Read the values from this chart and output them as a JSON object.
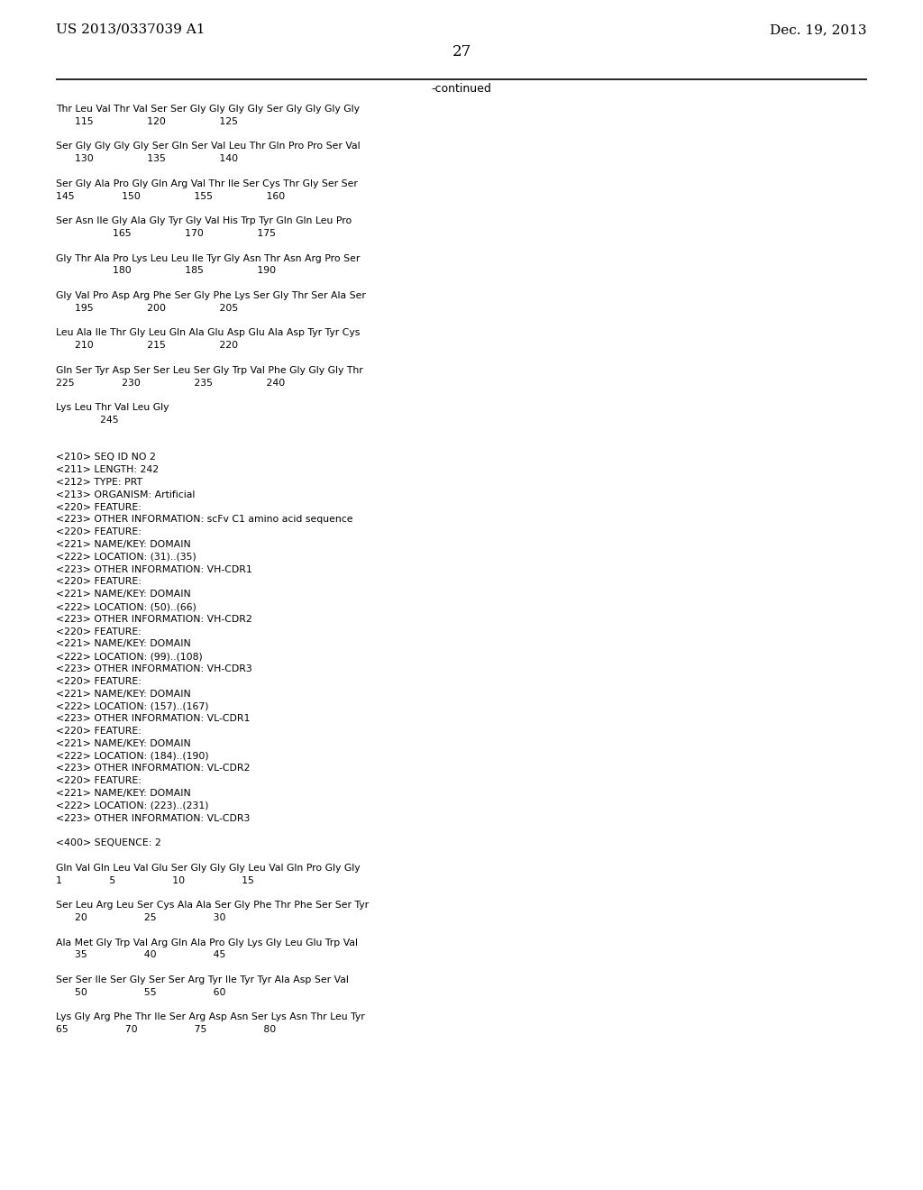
{
  "header_left": "US 2013/0337039 A1",
  "header_right": "Dec. 19, 2013",
  "page_number": "27",
  "continued_label": "-continued",
  "background_color": "#ffffff",
  "text_color": "#000000",
  "monospace_font": "Courier New",
  "serif_font": "DejaVu Serif",
  "content_lines": [
    "Thr Leu Val Thr Val Ser Ser Gly Gly Gly Gly Ser Gly Gly Gly Gly",
    "      115                 120                 125",
    "",
    "Ser Gly Gly Gly Gly Ser Gln Ser Val Leu Thr Gln Pro Pro Ser Val",
    "      130                 135                 140",
    "",
    "Ser Gly Ala Pro Gly Gln Arg Val Thr Ile Ser Cys Thr Gly Ser Ser",
    "145               150                 155                 160",
    "",
    "Ser Asn Ile Gly Ala Gly Tyr Gly Val His Trp Tyr Gln Gln Leu Pro",
    "                  165                 170                 175",
    "",
    "Gly Thr Ala Pro Lys Leu Leu Ile Tyr Gly Asn Thr Asn Arg Pro Ser",
    "                  180                 185                 190",
    "",
    "Gly Val Pro Asp Arg Phe Ser Gly Phe Lys Ser Gly Thr Ser Ala Ser",
    "      195                 200                 205",
    "",
    "Leu Ala Ile Thr Gly Leu Gln Ala Glu Asp Glu Ala Asp Tyr Tyr Cys",
    "      210                 215                 220",
    "",
    "Gln Ser Tyr Asp Ser Ser Leu Ser Gly Trp Val Phe Gly Gly Gly Thr",
    "225               230                 235                 240",
    "",
    "Lys Leu Thr Val Leu Gly",
    "              245",
    "",
    "",
    "<210> SEQ ID NO 2",
    "<211> LENGTH: 242",
    "<212> TYPE: PRT",
    "<213> ORGANISM: Artificial",
    "<220> FEATURE:",
    "<223> OTHER INFORMATION: scFv C1 amino acid sequence",
    "<220> FEATURE:",
    "<221> NAME/KEY: DOMAIN",
    "<222> LOCATION: (31)..(35)",
    "<223> OTHER INFORMATION: VH-CDR1",
    "<220> FEATURE:",
    "<221> NAME/KEY: DOMAIN",
    "<222> LOCATION: (50)..(66)",
    "<223> OTHER INFORMATION: VH-CDR2",
    "<220> FEATURE:",
    "<221> NAME/KEY: DOMAIN",
    "<222> LOCATION: (99)..(108)",
    "<223> OTHER INFORMATION: VH-CDR3",
    "<220> FEATURE:",
    "<221> NAME/KEY: DOMAIN",
    "<222> LOCATION: (157)..(167)",
    "<223> OTHER INFORMATION: VL-CDR1",
    "<220> FEATURE:",
    "<221> NAME/KEY: DOMAIN",
    "<222> LOCATION: (184)..(190)",
    "<223> OTHER INFORMATION: VL-CDR2",
    "<220> FEATURE:",
    "<221> NAME/KEY: DOMAIN",
    "<222> LOCATION: (223)..(231)",
    "<223> OTHER INFORMATION: VL-CDR3",
    "",
    "<400> SEQUENCE: 2",
    "",
    "Gln Val Gln Leu Val Glu Ser Gly Gly Gly Leu Val Gln Pro Gly Gly",
    "1               5                  10                  15",
    "",
    "Ser Leu Arg Leu Ser Cys Ala Ala Ser Gly Phe Thr Phe Ser Ser Tyr",
    "      20                  25                  30",
    "",
    "Ala Met Gly Trp Val Arg Gln Ala Pro Gly Lys Gly Leu Glu Trp Val",
    "      35                  40                  45",
    "",
    "Ser Ser Ile Ser Gly Ser Ser Arg Tyr Ile Tyr Tyr Ala Asp Ser Val",
    "      50                  55                  60",
    "",
    "Lys Gly Arg Phe Thr Ile Ser Arg Asp Asn Ser Lys Asn Thr Leu Tyr",
    "65                  70                  75                  80"
  ]
}
